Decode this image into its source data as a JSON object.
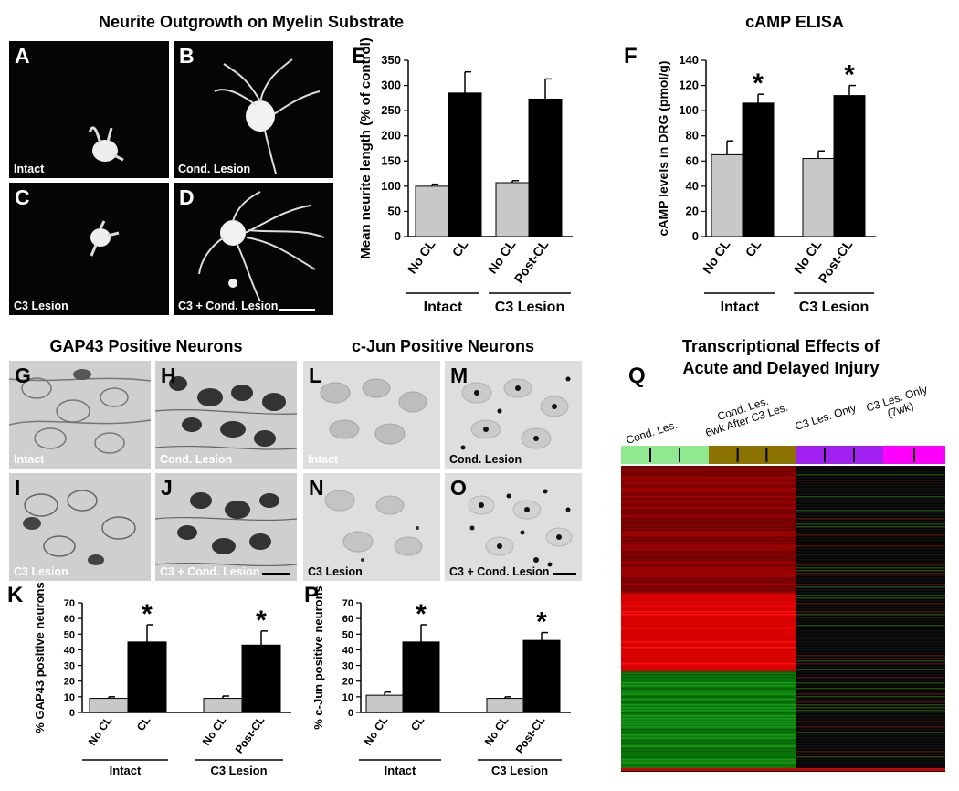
{
  "titles": {
    "neurite": "Neurite Outgrowth on Myelin Substrate",
    "camp": "cAMP ELISA",
    "gap43": "GAP43 Positive Neurons",
    "cjun": "c-Jun Positive Neurons",
    "transcription_line1": "Transcriptional Effects of",
    "transcription_line2": "Acute and Delayed Injury"
  },
  "panel_letters": {
    "A": "A",
    "B": "B",
    "C": "C",
    "D": "D",
    "E": "E",
    "F": "F",
    "G": "G",
    "H": "H",
    "I": "I",
    "J": "J",
    "K": "K",
    "L": "L",
    "M": "M",
    "N": "N",
    "O": "O",
    "P": "P",
    "Q": "Q"
  },
  "image_captions": {
    "A": "Intact",
    "B": "Cond. Lesion",
    "C": "C3 Lesion",
    "D": "C3 + Cond. Lesion",
    "G": "Intact",
    "H": "Cond. Lesion",
    "I": "C3 Lesion",
    "J": "C3 + Cond. Lesion",
    "L": "Intact",
    "M": "Cond. Lesion",
    "N": "C3 Lesion",
    "O": "C3 + Cond. Lesion"
  },
  "heatmap": {
    "columns": [
      "Cond. Les.",
      "Cond. Les.\n6wk After C3 Les.",
      "C3 Les. Only",
      "C3 Les. Only\n(7wk)"
    ],
    "column_line1": [
      "Cond. Les.",
      "Cond. Les.",
      "C3 Les. Only",
      "C3 Les. Only"
    ],
    "column_line2": [
      "",
      "6wk After C3 Les.",
      "",
      "(7wk)"
    ],
    "group_colors": [
      "#90e890",
      "#8c7300",
      "#a020f0",
      "#ff00ff"
    ]
  },
  "chart_data": [
    {
      "panel": "E",
      "type": "bar",
      "categories": [
        "No CL",
        "CL",
        "No CL",
        "Post-CL"
      ],
      "groups": [
        "Intact",
        "C3 Lesion"
      ],
      "values": [
        100,
        285,
        107,
        273
      ],
      "errors": [
        4,
        42,
        4,
        40
      ],
      "colors": [
        "#c8c8c8",
        "#000000",
        "#c8c8c8",
        "#000000"
      ],
      "significant": [
        false,
        false,
        false,
        false
      ],
      "ylabel": "Mean neurite length (% of control)",
      "ylim": [
        0,
        350
      ],
      "yticks": [
        0,
        50,
        100,
        150,
        200,
        250,
        300,
        350
      ]
    },
    {
      "panel": "F",
      "type": "bar",
      "categories": [
        "No CL",
        "CL",
        "No CL",
        "Post-CL"
      ],
      "groups": [
        "Intact",
        "C3 Lesion"
      ],
      "values": [
        65,
        106,
        62,
        112
      ],
      "errors": [
        11,
        7,
        6,
        8
      ],
      "colors": [
        "#c8c8c8",
        "#000000",
        "#c8c8c8",
        "#000000"
      ],
      "significant": [
        false,
        true,
        false,
        true
      ],
      "ylabel": "cAMP levels in DRG (pmol/g)",
      "ylim": [
        0,
        140
      ],
      "yticks": [
        0,
        20,
        40,
        60,
        80,
        100,
        120,
        140
      ]
    },
    {
      "panel": "K",
      "type": "bar",
      "categories": [
        "No CL",
        "CL",
        "No CL",
        "Post-CL"
      ],
      "groups": [
        "Intact",
        "C3 Lesion"
      ],
      "values": [
        9,
        45,
        9,
        43
      ],
      "errors": [
        1,
        11,
        1.5,
        9
      ],
      "colors": [
        "#c8c8c8",
        "#000000",
        "#c8c8c8",
        "#000000"
      ],
      "significant": [
        false,
        true,
        false,
        true
      ],
      "ylabel": "% GAP43 positive neurons",
      "ylim": [
        0,
        70
      ],
      "yticks": [
        0,
        10,
        20,
        30,
        40,
        50,
        60,
        70
      ]
    },
    {
      "panel": "P",
      "type": "bar",
      "categories": [
        "No CL",
        "CL",
        "No CL",
        "Post-CL"
      ],
      "groups": [
        "Intact",
        "C3 Lesion"
      ],
      "values": [
        11,
        45,
        9,
        46
      ],
      "errors": [
        2,
        11,
        1,
        5
      ],
      "colors": [
        "#c8c8c8",
        "#000000",
        "#c8c8c8",
        "#000000"
      ],
      "significant": [
        false,
        true,
        false,
        true
      ],
      "ylabel": "% c-Jun positive neurons",
      "ylim": [
        0,
        70
      ],
      "yticks": [
        0,
        10,
        20,
        30,
        40,
        50,
        60,
        70
      ]
    }
  ]
}
